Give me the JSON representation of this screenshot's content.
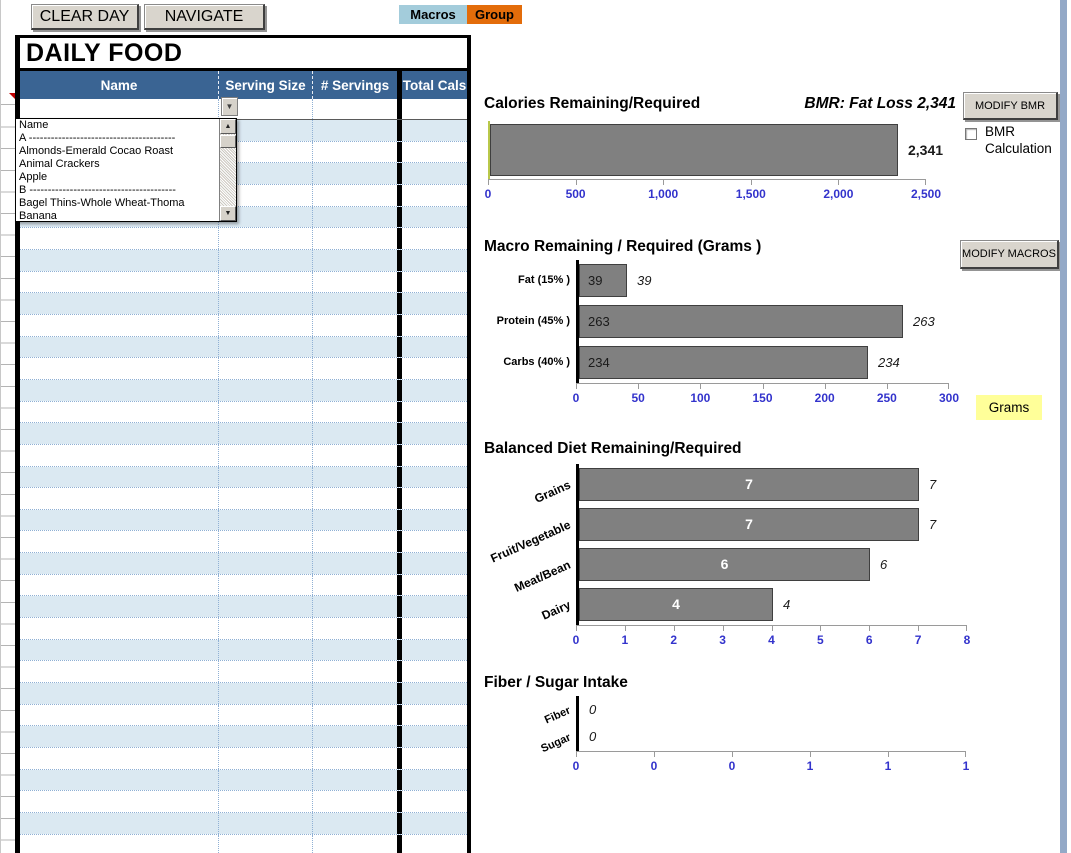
{
  "toolbar": {
    "clear_day": "CLEAR DAY",
    "navigate": "NAVIGATE",
    "macros_tab": "Macros",
    "group_tab": "Group"
  },
  "table": {
    "title": "DAILY FOOD",
    "columns": [
      "Name",
      "Serving Size",
      "# Servings",
      "Total Cals"
    ],
    "dropdown_items": [
      "Name",
      "A  ----------------------------------------",
      "Almonds-Emerald Cocao Roast",
      "Animal Crackers",
      "Apple",
      "B  ----------------------------------------",
      "Bagel Thins-Whole Wheat-Thoma",
      "Banana"
    ]
  },
  "controls": {
    "modify_bmr": "MODIFY BMR",
    "bmr_checkbox_label": "BMR Calculation",
    "bmr_checkbox_checked": false,
    "modify_macros": "MODIFY MACROS",
    "grams_label": "Grams"
  },
  "colors": {
    "header_blue": "#3a6493",
    "row_band_blue": "#dbe9f2",
    "bar_gray": "#808080",
    "axis_label_blue": "#3333cc",
    "macros_tab_bg": "#a3ccdb",
    "group_tab_bg": "#e36c0a",
    "grams_bg": "#ffff99"
  },
  "chart_data": [
    {
      "type": "bar",
      "orientation": "horizontal",
      "title": "Calories Remaining/Required",
      "right_title": "BMR: Fat Loss 2,341",
      "categories": [
        ""
      ],
      "values": [
        2341
      ],
      "data_labels": [
        "2,341"
      ],
      "xlim": [
        0,
        2500
      ],
      "tick_labels": [
        "0",
        "500",
        "1,000",
        "1,500",
        "2,000",
        "2,500"
      ],
      "grid": false,
      "legend": false
    },
    {
      "type": "bar",
      "orientation": "horizontal",
      "title": "Macro Remaining / Required (Grams )",
      "categories": [
        "Fat (15% )",
        "Protein (45% )",
        "Carbs (40% )"
      ],
      "values": [
        39,
        263,
        234
      ],
      "data_labels": [
        "39",
        "263",
        "234"
      ],
      "xlim": [
        0,
        300
      ],
      "tick_labels": [
        "0",
        "50",
        "100",
        "150",
        "200",
        "250",
        "300"
      ],
      "unit_label": "Grams",
      "grid": false,
      "legend": false
    },
    {
      "type": "bar",
      "orientation": "horizontal",
      "title": "Balanced Diet Remaining/Required",
      "categories": [
        "Grains",
        "Fruit/Vegetable",
        "Meat/Bean",
        "Dairy"
      ],
      "values": [
        7,
        7,
        6,
        4
      ],
      "data_labels": [
        "7",
        "7",
        "6",
        "4"
      ],
      "xlim": [
        0,
        8
      ],
      "tick_labels": [
        "0",
        "1",
        "2",
        "3",
        "4",
        "5",
        "6",
        "7",
        "8"
      ],
      "grid": false,
      "legend": false
    },
    {
      "type": "bar",
      "orientation": "horizontal",
      "title": "Fiber / Sugar Intake",
      "categories": [
        "Fiber",
        "Sugar"
      ],
      "values": [
        0,
        0
      ],
      "data_labels": [
        "0",
        "0"
      ],
      "xlim": [
        0,
        1
      ],
      "tick_labels": [
        "0",
        "0",
        "0",
        "1",
        "1",
        "1"
      ],
      "grid": false,
      "legend": false
    }
  ]
}
